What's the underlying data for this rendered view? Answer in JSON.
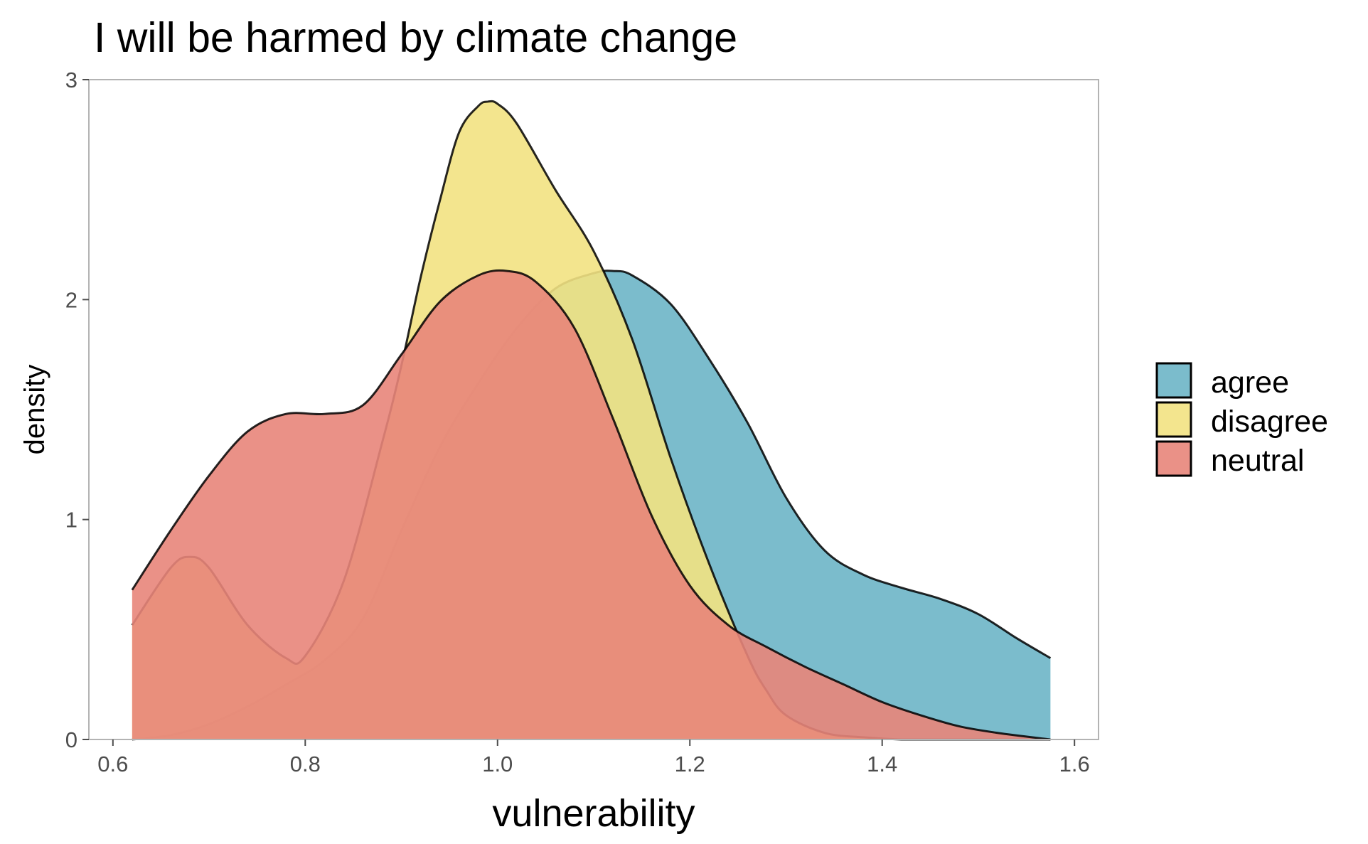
{
  "chart_data": {
    "type": "area",
    "title": "I will be harmed by climate change",
    "xlabel": "vulnerability",
    "ylabel": "density",
    "xlim": [
      0.575,
      1.625
    ],
    "ylim": [
      0,
      3
    ],
    "x_ticks": [
      0.6,
      0.8,
      1.0,
      1.2,
      1.4,
      1.6
    ],
    "x_tick_labels": [
      "0.6",
      "0.8",
      "1.0",
      "1.2",
      "1.4",
      "1.6"
    ],
    "y_ticks": [
      0,
      1,
      2,
      3
    ],
    "y_tick_labels": [
      "0",
      "1",
      "2",
      "3"
    ],
    "grid": false,
    "legend_position": "right",
    "series": [
      {
        "name": "agree",
        "color": "#6DB5C6",
        "x": [
          0.62,
          0.66,
          0.7,
          0.74,
          0.78,
          0.82,
          0.86,
          0.9,
          0.94,
          0.98,
          1.02,
          1.06,
          1.1,
          1.12,
          1.14,
          1.18,
          1.22,
          1.26,
          1.3,
          1.34,
          1.38,
          1.42,
          1.46,
          1.5,
          1.54,
          1.575
        ],
        "y": [
          0.0,
          0.02,
          0.07,
          0.15,
          0.25,
          0.36,
          0.55,
          0.95,
          1.33,
          1.62,
          1.87,
          2.05,
          2.12,
          2.13,
          2.11,
          1.98,
          1.73,
          1.44,
          1.1,
          0.86,
          0.75,
          0.69,
          0.64,
          0.57,
          0.46,
          0.37
        ]
      },
      {
        "name": "disagree",
        "color": "#F2E282",
        "x": [
          0.62,
          0.66,
          0.68,
          0.7,
          0.74,
          0.78,
          0.8,
          0.84,
          0.88,
          0.9,
          0.92,
          0.94,
          0.96,
          0.98,
          0.99,
          1.0,
          1.02,
          1.06,
          1.1,
          1.14,
          1.18,
          1.22,
          1.26,
          1.28,
          1.3,
          1.34,
          1.38,
          1.42,
          1.46,
          1.5,
          1.54,
          1.575
        ],
        "y": [
          0.52,
          0.78,
          0.83,
          0.78,
          0.52,
          0.37,
          0.38,
          0.72,
          1.35,
          1.7,
          2.1,
          2.45,
          2.76,
          2.88,
          2.9,
          2.89,
          2.8,
          2.5,
          2.22,
          1.82,
          1.28,
          0.8,
          0.38,
          0.22,
          0.11,
          0.03,
          0.01,
          0.0,
          0.0,
          0.0,
          0.0,
          0.0
        ]
      },
      {
        "name": "neutral",
        "color": "#E8857A",
        "x": [
          0.62,
          0.66,
          0.7,
          0.74,
          0.78,
          0.82,
          0.86,
          0.9,
          0.94,
          0.98,
          1.01,
          1.04,
          1.08,
          1.12,
          1.16,
          1.2,
          1.24,
          1.28,
          1.32,
          1.36,
          1.4,
          1.44,
          1.48,
          1.52,
          1.575
        ],
        "y": [
          0.68,
          0.95,
          1.2,
          1.4,
          1.48,
          1.48,
          1.52,
          1.75,
          1.99,
          2.11,
          2.13,
          2.08,
          1.87,
          1.46,
          1.02,
          0.7,
          0.52,
          0.42,
          0.33,
          0.25,
          0.17,
          0.11,
          0.06,
          0.03,
          0.0
        ]
      }
    ]
  }
}
